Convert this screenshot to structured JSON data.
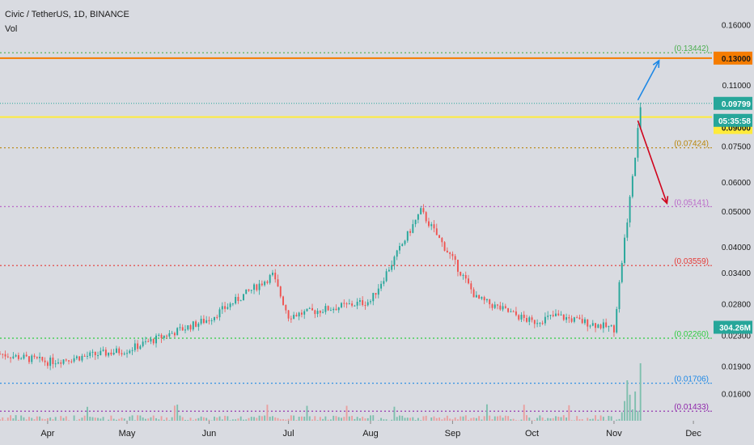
{
  "header": {
    "symbol_title": "Civic / TetherUS, 1D, BINANCE",
    "volume_label": "Vol"
  },
  "chart_data": {
    "type": "candlestick",
    "y_scale": "log",
    "ylim": [
      0.0135,
      0.185
    ],
    "xlim": [
      "2020-03-14",
      "2020-12-08"
    ],
    "x_tick_labels": [
      {
        "label": "Apr",
        "date": "2020-04-01"
      },
      {
        "label": "May",
        "date": "2020-05-01"
      },
      {
        "label": "Jun",
        "date": "2020-06-01"
      },
      {
        "label": "Jul",
        "date": "2020-07-01"
      },
      {
        "label": "Aug",
        "date": "2020-08-01"
      },
      {
        "label": "Sep",
        "date": "2020-09-01"
      },
      {
        "label": "Oct",
        "date": "2020-10-01"
      },
      {
        "label": "Nov",
        "date": "2020-11-01"
      },
      {
        "label": "Dec",
        "date": "2020-12-01"
      }
    ],
    "y_tick_labels": [
      {
        "label": "0.16000",
        "value": 0.16
      },
      {
        "label": "0.11000",
        "value": 0.11
      },
      {
        "label": "0.07500",
        "value": 0.075
      },
      {
        "label": "0.06000",
        "value": 0.06
      },
      {
        "label": "0.05000",
        "value": 0.05
      },
      {
        "label": "0.04000",
        "value": 0.04
      },
      {
        "label": "0.03400",
        "value": 0.034
      },
      {
        "label": "0.02800",
        "value": 0.028
      },
      {
        "label": "0.02300",
        "value": 0.023
      },
      {
        "label": "0.01900",
        "value": 0.019
      },
      {
        "label": "0.01600",
        "value": 0.016
      }
    ],
    "horizontal_levels": [
      {
        "label": "(0.13442)",
        "value": 0.13442,
        "color": "#4caf50",
        "style": "dotted",
        "label_style": "bracket"
      },
      {
        "label": "0.13000",
        "value": 0.13,
        "color": "#f57c00",
        "style": "solid",
        "label_style": "filled"
      },
      {
        "label": "(0.07424)",
        "value": 0.07424,
        "color": "#b8860b",
        "style": "dotted",
        "label_style": "bracket"
      },
      {
        "label": "(0.05141)",
        "value": 0.05141,
        "color": "#ba68c8",
        "style": "dotted",
        "label_style": "bracket"
      },
      {
        "label": "(0.03559)",
        "value": 0.03559,
        "color": "#e53935",
        "style": "dotted",
        "label_style": "bracket"
      },
      {
        "label": "(0.02260)",
        "value": 0.0226,
        "color": "#2ecc40",
        "style": "dotted",
        "label_style": "bracket"
      },
      {
        "label": "(0.01706)",
        "value": 0.01706,
        "color": "#1e88e5",
        "style": "dotted",
        "label_style": "bracket"
      },
      {
        "label": "(0.01433)",
        "value": 0.01433,
        "color": "#8e24aa",
        "style": "dotted",
        "label_style": "bracket"
      },
      {
        "label": "0.09000",
        "value": 0.09,
        "color": "#ffeb3b",
        "style": "solid",
        "label_style": "filled_dark_text"
      }
    ],
    "last_price": {
      "label": "0.09799",
      "value": 0.09799,
      "color": "#26a69a"
    },
    "countdown": {
      "label": "05:35:58"
    },
    "volume_badge": {
      "label": "304.26M"
    },
    "arrows": [
      {
        "from": {
          "date": "2020-11-10",
          "value": 0.1
        },
        "to": {
          "date": "2020-11-18",
          "value": 0.128
        },
        "color": "#1e88e5"
      },
      {
        "from": {
          "date": "2020-11-10",
          "value": 0.088
        },
        "to": {
          "date": "2020-11-21",
          "value": 0.0525
        },
        "color": "#d0021b"
      }
    ],
    "key_closes": [
      {
        "date": "2020-03-14",
        "value": 0.0205
      },
      {
        "date": "2020-04-01",
        "value": 0.0195
      },
      {
        "date": "2020-05-01",
        "value": 0.021
      },
      {
        "date": "2020-06-01",
        "value": 0.0255
      },
      {
        "date": "2020-06-25",
        "value": 0.0335
      },
      {
        "date": "2020-07-01",
        "value": 0.026
      },
      {
        "date": "2020-08-01",
        "value": 0.0285
      },
      {
        "date": "2020-08-20",
        "value": 0.05
      },
      {
        "date": "2020-09-01",
        "value": 0.037
      },
      {
        "date": "2020-09-10",
        "value": 0.029
      },
      {
        "date": "2020-10-01",
        "value": 0.025
      },
      {
        "date": "2020-10-10",
        "value": 0.026
      },
      {
        "date": "2020-11-01",
        "value": 0.024
      },
      {
        "date": "2020-11-05",
        "value": 0.042
      },
      {
        "date": "2020-11-09",
        "value": 0.07
      },
      {
        "date": "2020-11-11",
        "value": 0.098
      }
    ]
  },
  "colors": {
    "background": "#d9dbe1",
    "bull_candle": "#26a69a",
    "bear_candle": "#ef5350",
    "axis_text": "#1a1a1a",
    "volume_bull": "#7fbfae",
    "volume_bear": "#e9a0a0"
  }
}
